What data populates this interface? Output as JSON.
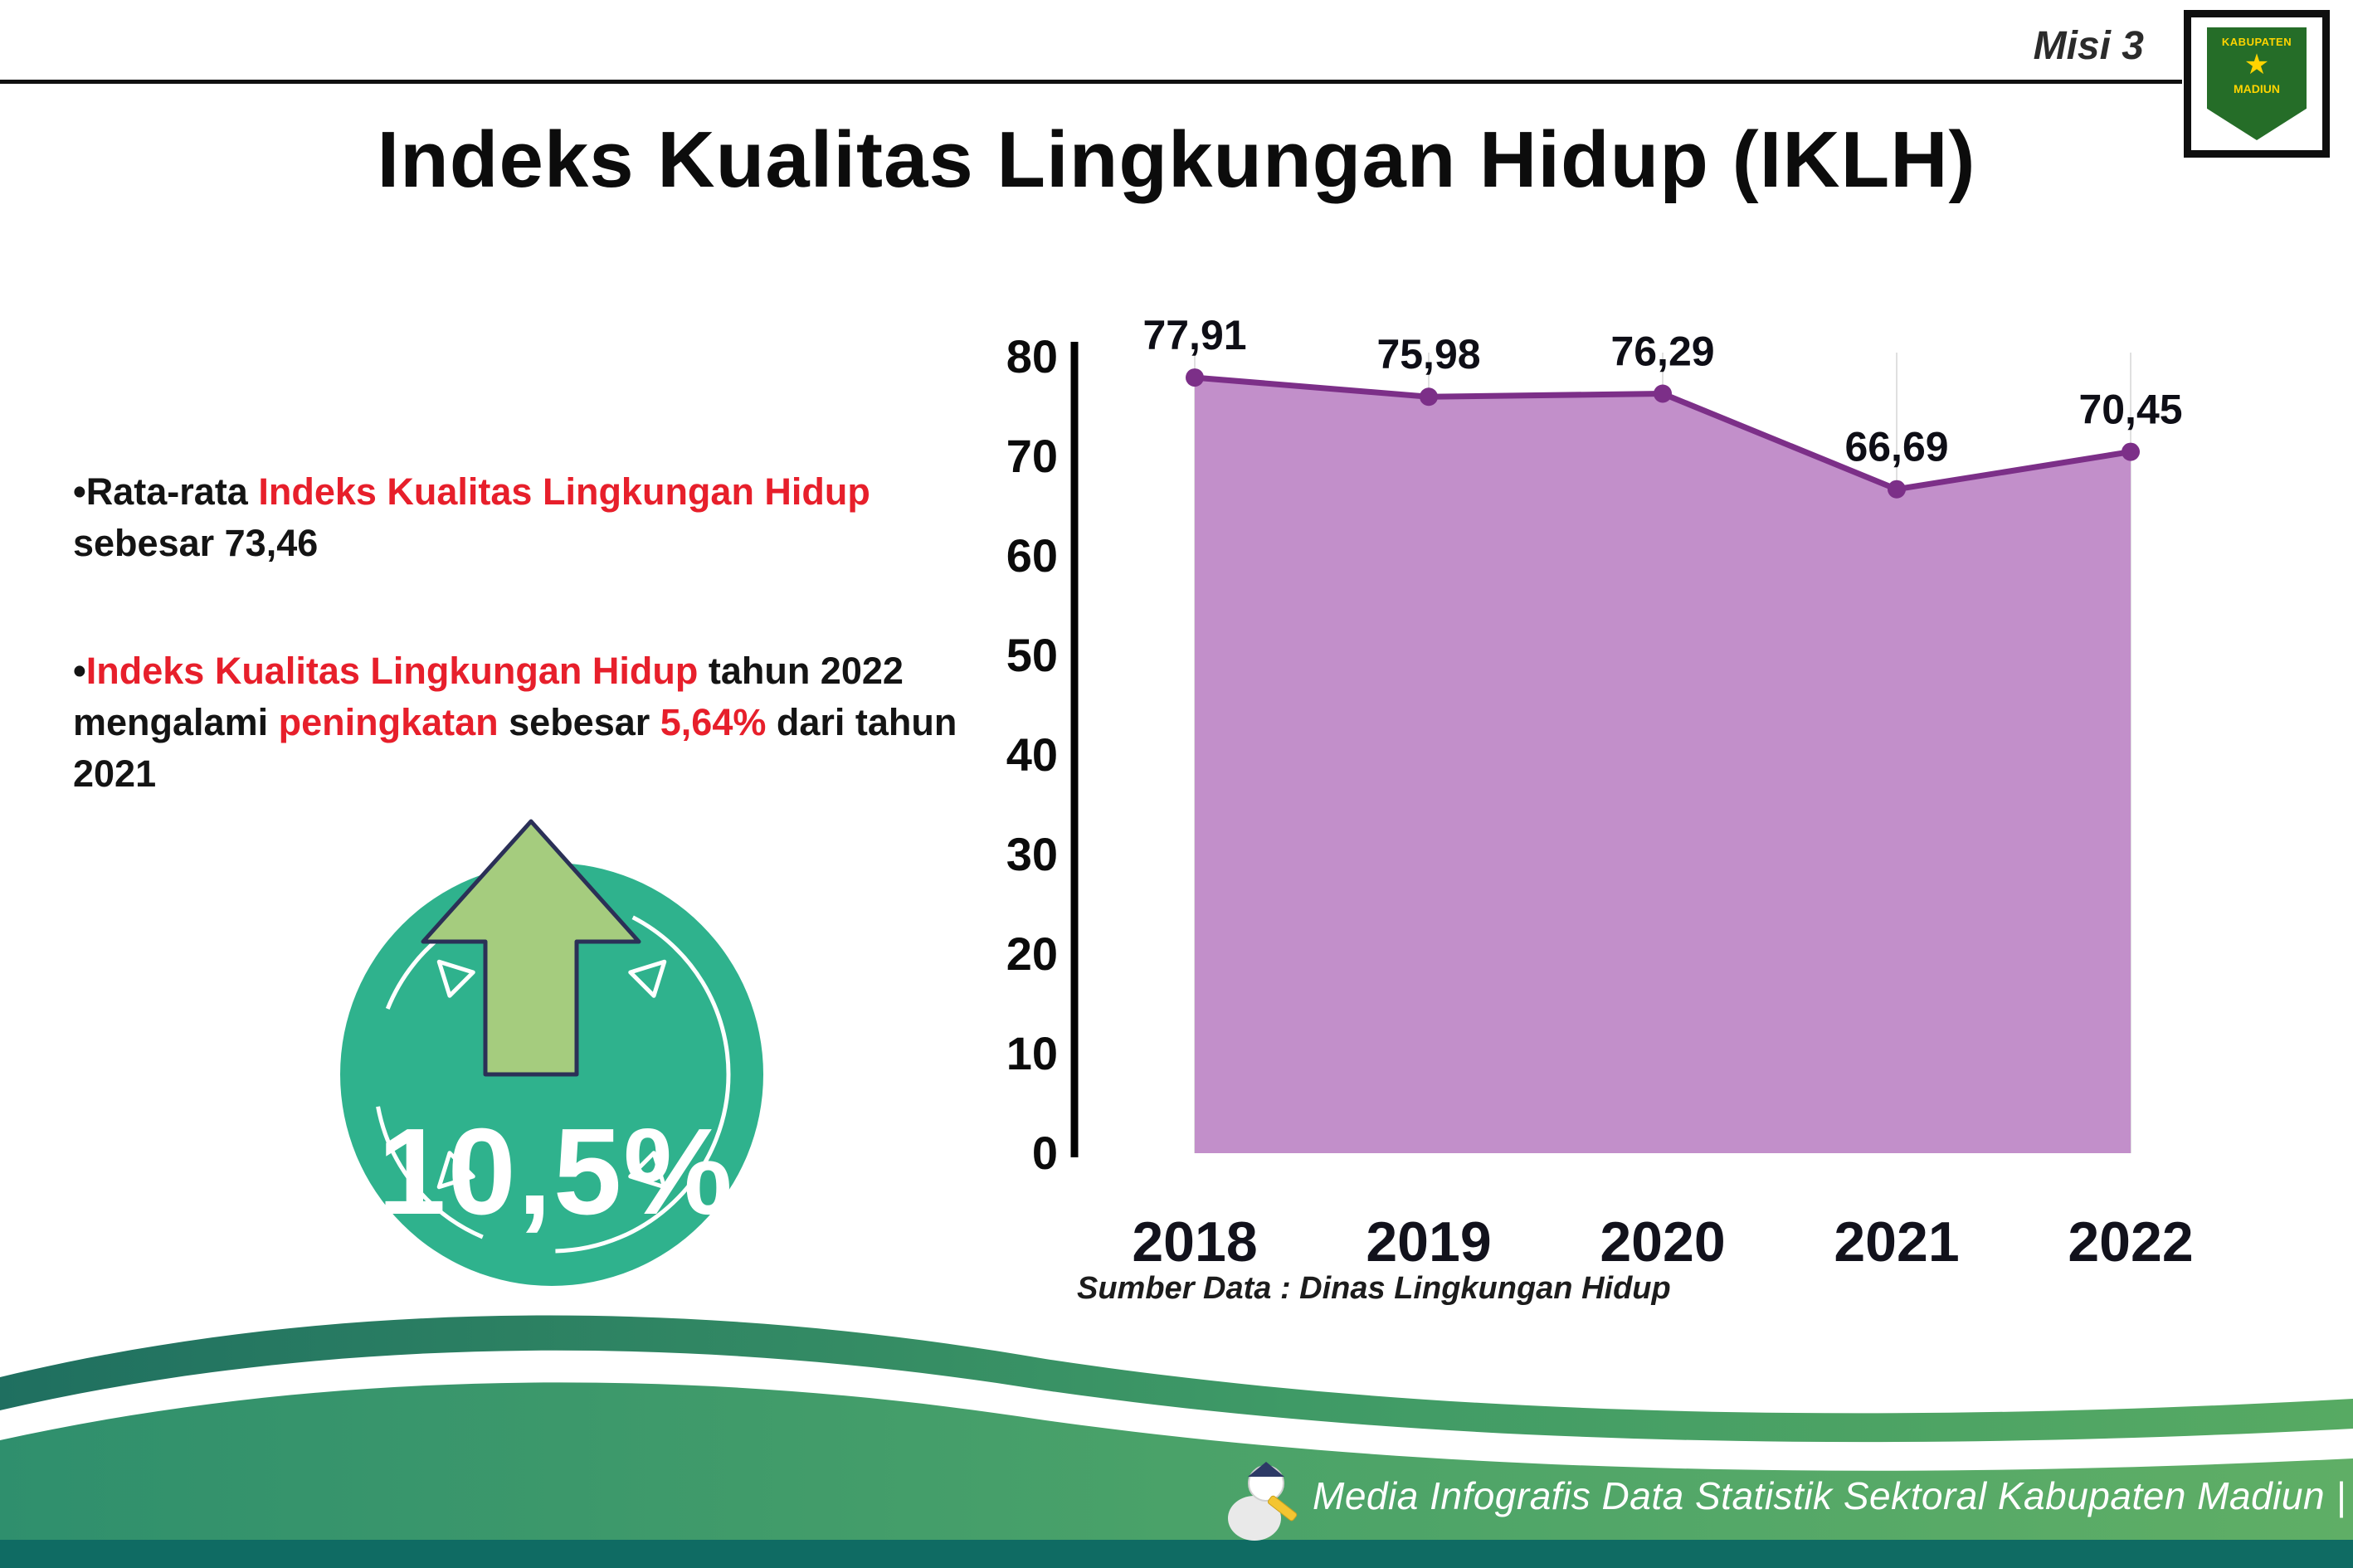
{
  "header": {
    "misi": "Misi 3",
    "title": "Indeks Kualitas Lingkungan Hidup (IKLH)",
    "logo": {
      "top": "KABUPATEN",
      "bottom": "MADIUN",
      "star": "★"
    }
  },
  "bullets": {
    "dot": "•",
    "b1": {
      "s1": "Rata-rata ",
      "s2": "Indeks Kualitas Lingkungan Hidup",
      "s3": " sebesar 73,46"
    },
    "b2": {
      "s1": "Indeks Kualitas Lingkungan Hidup",
      "s2": " tahun 2022 mengalami ",
      "s3": "peningkatan",
      "s4": " sebesar ",
      "s5": "5,64%",
      "s6": " dari tahun 2021"
    }
  },
  "badge": {
    "value": "10,5%"
  },
  "chart_data": {
    "type": "area",
    "title": "Indeks Kualitas Lingkungan Hidup (IKLH)",
    "categories": [
      "2018",
      "2019",
      "2020",
      "2021",
      "2022"
    ],
    "values": [
      77.91,
      75.98,
      76.29,
      66.69,
      70.45
    ],
    "point_labels": [
      "77,91",
      "75,98",
      "76,29",
      "66,69",
      "70,45"
    ],
    "xlabel": "",
    "ylabel": "",
    "ylim": [
      0,
      80
    ],
    "yticks": [
      0,
      10,
      20,
      30,
      40,
      50,
      60,
      70,
      80
    ],
    "grid": "vertical-light",
    "legend": "none",
    "line_color": "#7c2f88",
    "fill_color": "#c28fca",
    "source": "Sumber Data : Dinas Lingkungan Hidup"
  },
  "colors": {
    "accent_red": "#e71f2b",
    "badge_green": "#2fb28d",
    "arrow_green": "#a5cc7e",
    "footer_dark_teal": "#0f6b63"
  },
  "footer": {
    "text": "Media Infografis Data Statistik Sektoral Kabupaten Madiun |"
  }
}
